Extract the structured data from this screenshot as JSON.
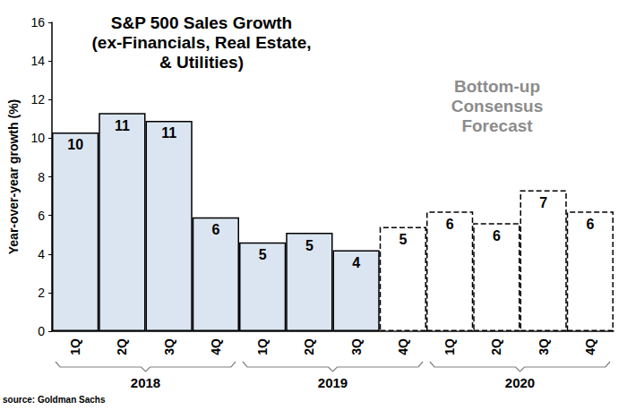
{
  "chart_data": {
    "type": "bar",
    "title": "S&P 500 Sales Growth\n(ex-Financials, Real Estate,\n& Utilities)",
    "ylabel": "Year-over-year growth (%)",
    "annotation": "Bottom-up\nConsensus\nForecast",
    "source": "source: Goldman Sachs",
    "categories": [
      "1Q",
      "2Q",
      "3Q",
      "4Q",
      "1Q",
      "2Q",
      "3Q",
      "4Q",
      "1Q",
      "2Q",
      "3Q",
      "4Q"
    ],
    "years": [
      "2018",
      "2018",
      "2018",
      "2018",
      "2019",
      "2019",
      "2019",
      "2019",
      "2020",
      "2020",
      "2020",
      "2020"
    ],
    "series": [
      {
        "color": "#dbe5f1",
        "line_style": "solid",
        "values": [
          10.3,
          11.3,
          10.9,
          5.9,
          4.6,
          5.1,
          4.2,
          null,
          null,
          null,
          null,
          null
        ],
        "value_labels": [
          "10",
          "11",
          "11",
          "6",
          "5",
          "5",
          "4",
          null,
          null,
          null,
          null,
          null
        ]
      },
      {
        "color": "#ffffff",
        "line_style": "dashed",
        "values": [
          null,
          null,
          null,
          null,
          null,
          null,
          null,
          5.4,
          6.2,
          5.6,
          7.3,
          6.2
        ],
        "value_labels": [
          null,
          null,
          null,
          null,
          null,
          null,
          null,
          "5",
          "6",
          "6",
          "7",
          "6"
        ]
      }
    ],
    "ylim": [
      0,
      16
    ],
    "yticks": [
      0,
      2,
      4,
      6,
      8,
      10,
      12,
      14,
      16
    ],
    "grid": false,
    "data_labels": true
  }
}
